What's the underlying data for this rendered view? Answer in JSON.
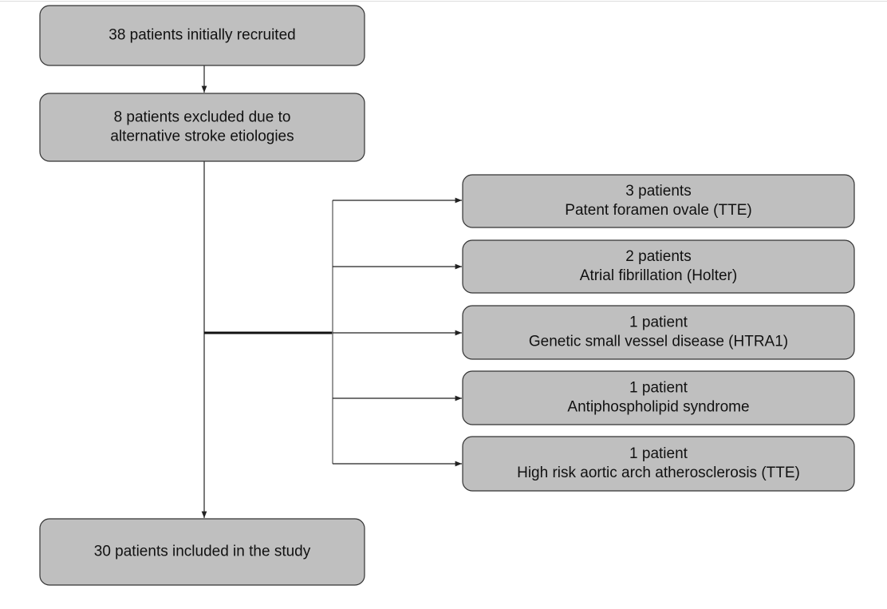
{
  "nodes": [
    {
      "lines": [
        "38 patients initially recruited"
      ]
    },
    {
      "lines": [
        "8 patients excluded due to",
        "alternative stroke etiologies"
      ]
    },
    {
      "lines": [
        "3 patients",
        "Patent foramen ovale (TTE)"
      ]
    },
    {
      "lines": [
        "2 patients",
        "Atrial fibrillation (Holter)"
      ]
    },
    {
      "lines": [
        "1 patient",
        "Genetic small vessel disease (HTRA1)"
      ]
    },
    {
      "lines": [
        "1 patient",
        "Antiphospholipid syndrome"
      ]
    },
    {
      "lines": [
        "1 patient",
        "High risk aortic arch atherosclerosis (TTE)"
      ]
    },
    {
      "lines": [
        "30 patients included in the study"
      ]
    }
  ]
}
